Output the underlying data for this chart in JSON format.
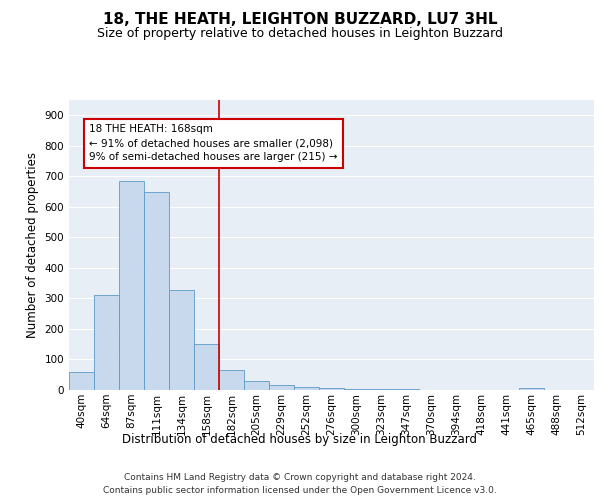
{
  "title": "18, THE HEATH, LEIGHTON BUZZARD, LU7 3HL",
  "subtitle": "Size of property relative to detached houses in Leighton Buzzard",
  "xlabel": "Distribution of detached houses by size in Leighton Buzzard",
  "ylabel": "Number of detached properties",
  "footer_line1": "Contains HM Land Registry data © Crown copyright and database right 2024.",
  "footer_line2": "Contains public sector information licensed under the Open Government Licence v3.0.",
  "bar_labels": [
    "40sqm",
    "64sqm",
    "87sqm",
    "111sqm",
    "134sqm",
    "158sqm",
    "182sqm",
    "205sqm",
    "229sqm",
    "252sqm",
    "276sqm",
    "300sqm",
    "323sqm",
    "347sqm",
    "370sqm",
    "394sqm",
    "418sqm",
    "441sqm",
    "465sqm",
    "488sqm",
    "512sqm"
  ],
  "bar_values": [
    60,
    310,
    685,
    650,
    328,
    152,
    65,
    30,
    18,
    10,
    6,
    4,
    4,
    2,
    1,
    1,
    0,
    0,
    8,
    1,
    0
  ],
  "bar_color": "#c8d9ed",
  "bar_edge_color": "#5a9bc8",
  "background_color": "#e8eef5",
  "grid_color": "#ffffff",
  "property_label": "18 THE HEATH: 168sqm",
  "annotation_line1": "← 91% of detached houses are smaller (2,098)",
  "annotation_line2": "9% of semi-detached houses are larger (215) →",
  "vline_x_index": 5.5,
  "annotation_box_color": "#ffffff",
  "annotation_box_edge_color": "#cc0000",
  "vline_color": "#cc0000",
  "ylim": [
    0,
    950
  ],
  "yticks": [
    0,
    100,
    200,
    300,
    400,
    500,
    600,
    700,
    800,
    900
  ],
  "title_fontsize": 11,
  "subtitle_fontsize": 9,
  "axis_label_fontsize": 8.5,
  "tick_fontsize": 7.5,
  "annotation_fontsize": 7.5,
  "footer_fontsize": 6.5
}
